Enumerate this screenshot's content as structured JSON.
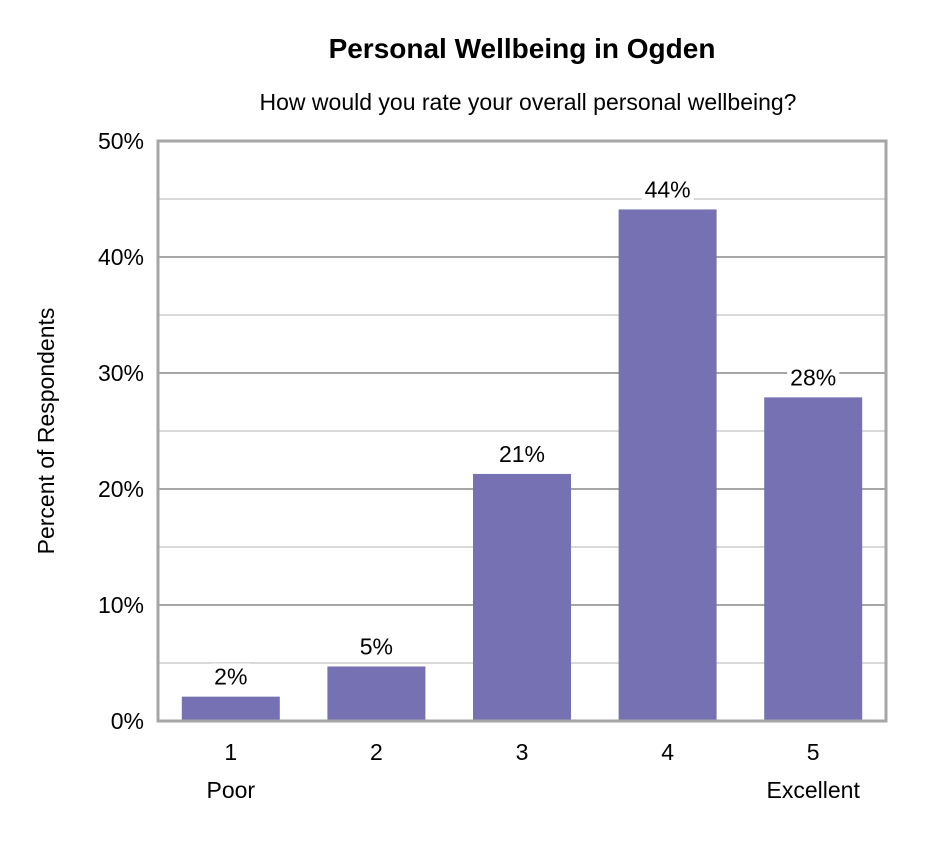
{
  "chart_data": {
    "type": "bar",
    "title": "Personal Wellbeing in Ogden",
    "subtitle": "How would you rate your overall personal wellbeing?",
    "xlabel": "",
    "ylabel": "Percent of Respondents",
    "categories": [
      "1",
      "2",
      "3",
      "4",
      "5"
    ],
    "category_sublabels": [
      "Poor",
      "",
      "",
      "",
      "Excellent"
    ],
    "values": [
      2.1,
      4.7,
      21.3,
      44.1,
      27.9
    ],
    "data_labels": [
      "2%",
      "5%",
      "21%",
      "44%",
      "28%"
    ],
    "ylim": [
      0,
      50
    ],
    "yticks": [
      0,
      10,
      20,
      30,
      40,
      50
    ],
    "ytick_labels": [
      "0%",
      "10%",
      "20%",
      "30%",
      "40%",
      "50%"
    ],
    "grid": true,
    "minor_grid": true,
    "legend": "none",
    "bar_color": "#7571b2"
  }
}
